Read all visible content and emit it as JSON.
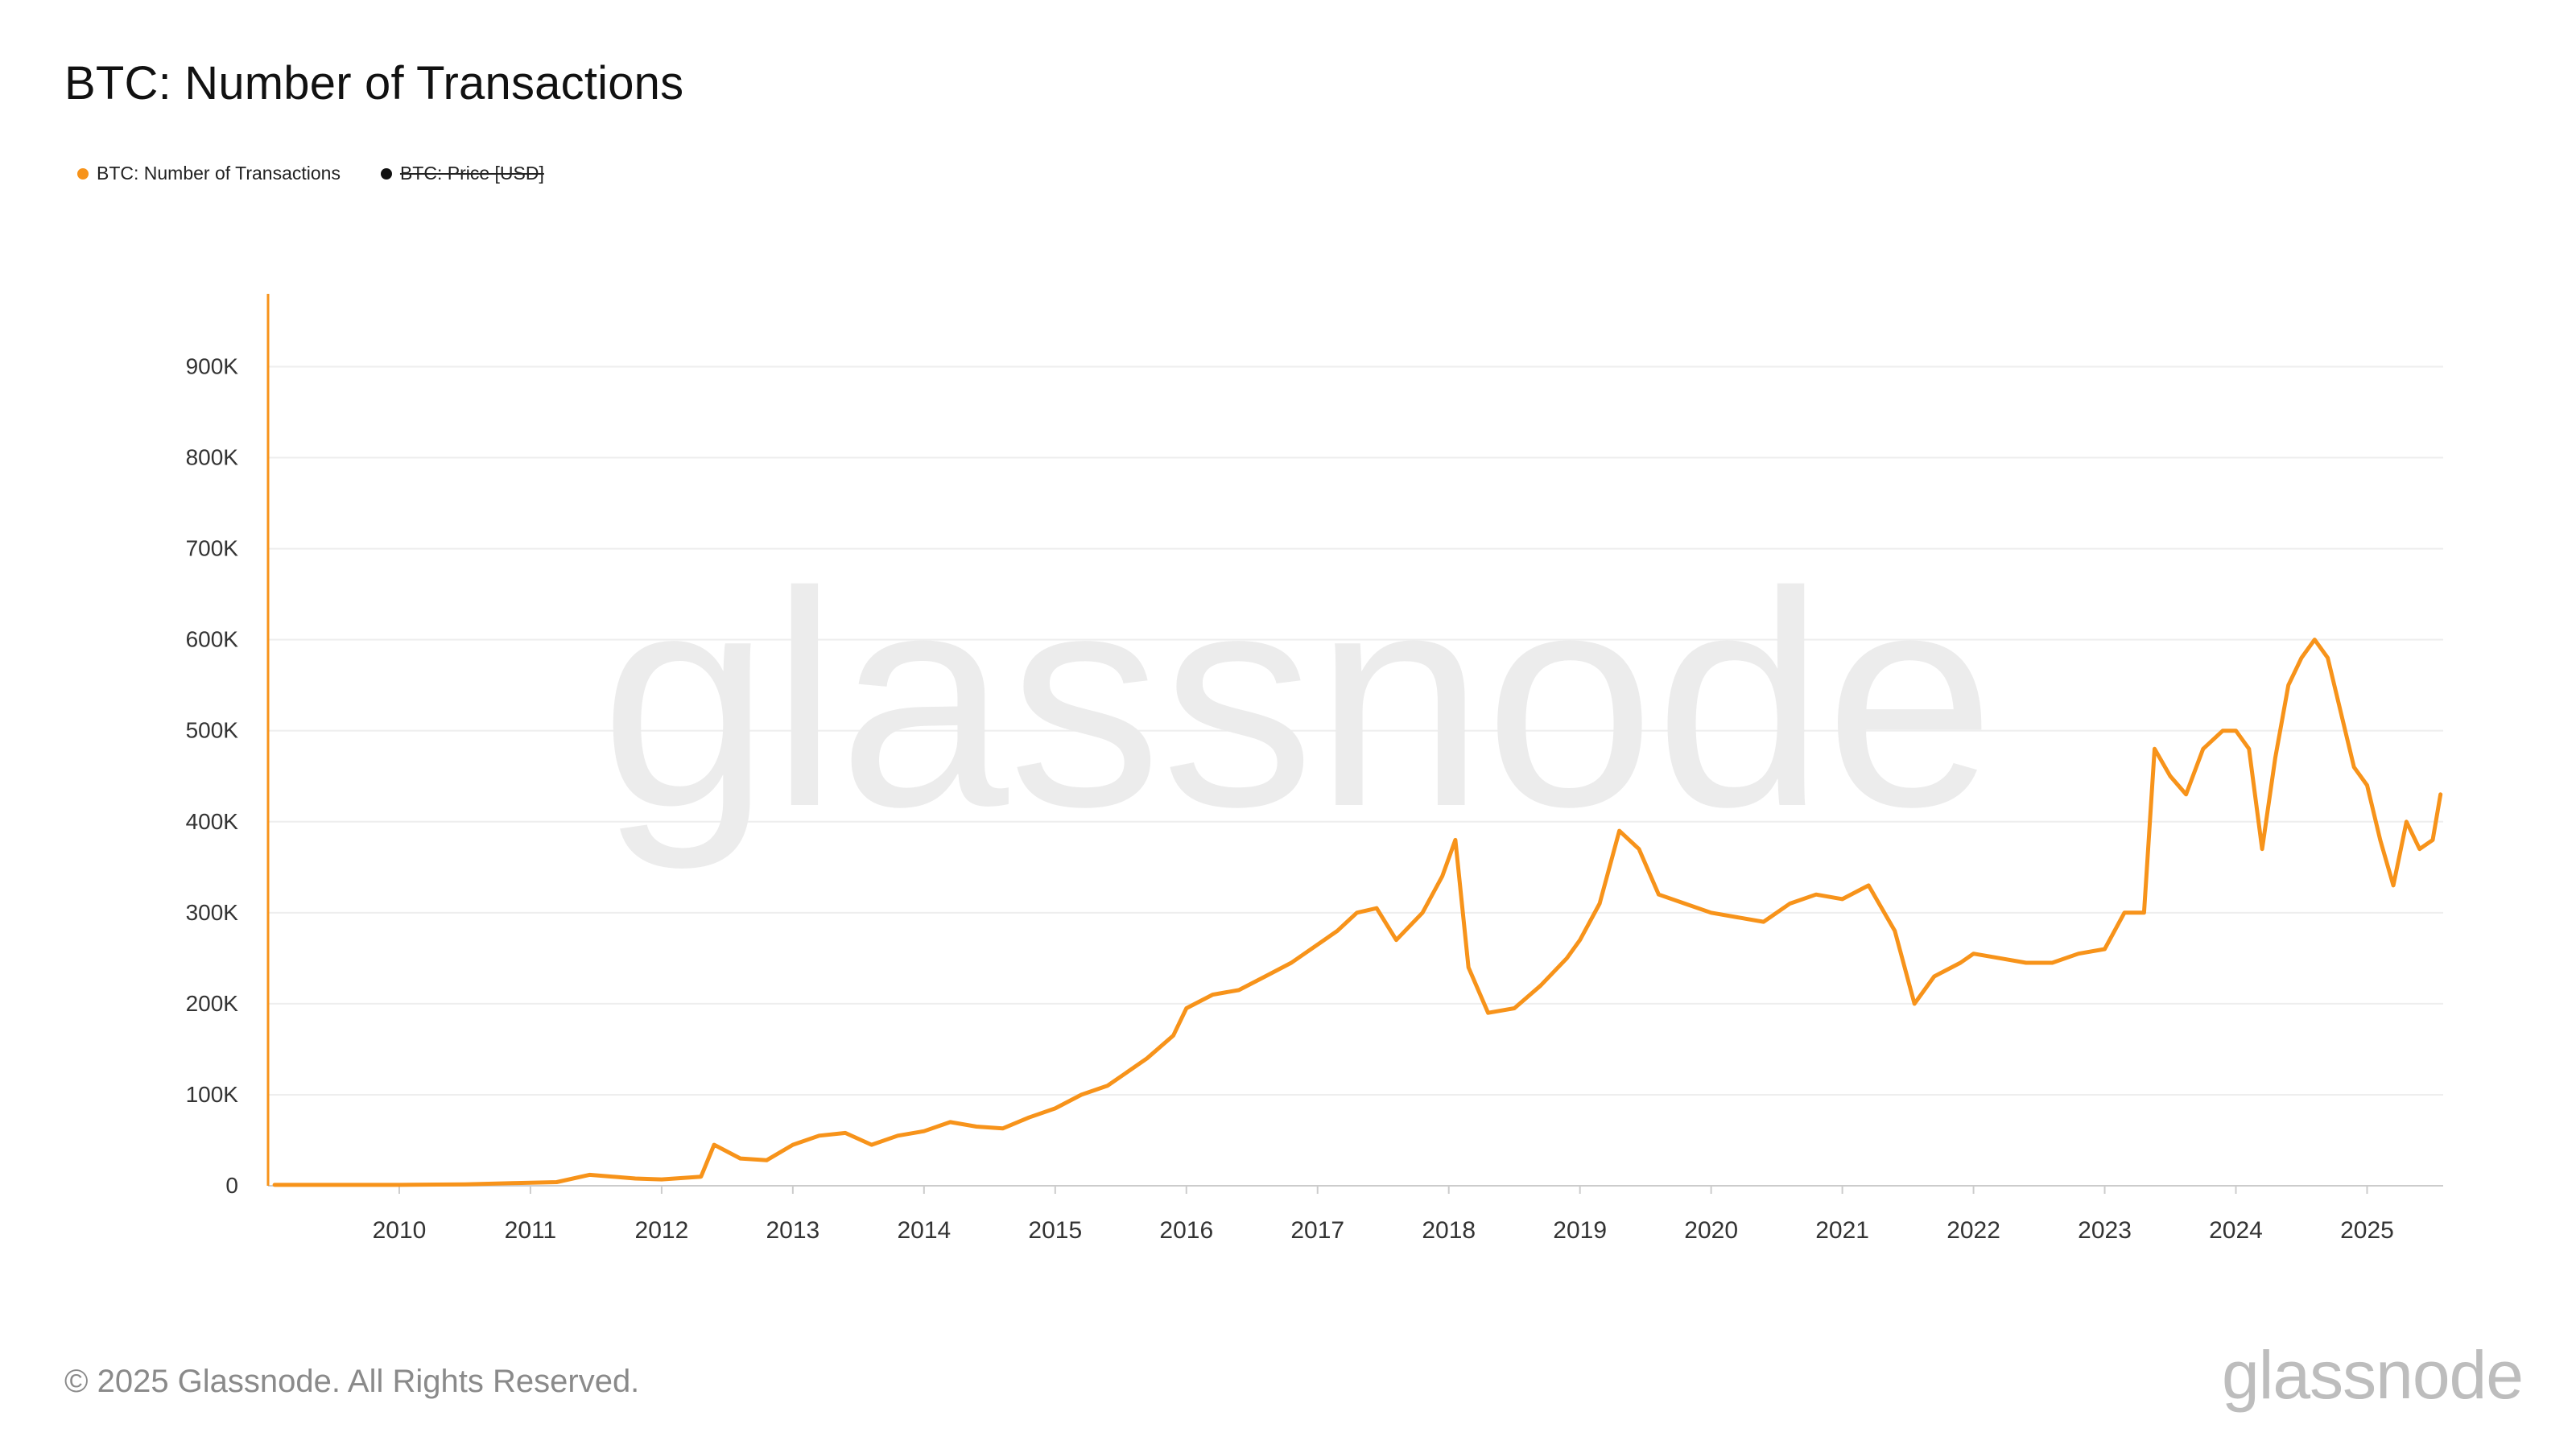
{
  "title": "BTC: Number of Transactions",
  "legend": [
    {
      "label": "BTC: Number of Transactions",
      "color": "#f7931a",
      "struck": false
    },
    {
      "label": "BTC: Price [USD]",
      "color": "#111111",
      "struck": true
    }
  ],
  "watermark": "glassnode",
  "footer": {
    "copyright": "© 2025 Glassnode. All Rights Reserved.",
    "logo": "glassnode"
  },
  "chart_data": {
    "type": "line",
    "title": "BTC: Number of Transactions",
    "xlabel": "",
    "ylabel": "",
    "x_domain": [
      2009.0,
      2025.58
    ],
    "ylim": [
      0,
      980000
    ],
    "y_ticks": [
      0,
      100000,
      200000,
      300000,
      400000,
      500000,
      600000,
      700000,
      800000,
      900000
    ],
    "y_tick_labels": [
      "0",
      "100K",
      "200K",
      "300K",
      "400K",
      "500K",
      "600K",
      "700K",
      "800K",
      "900K"
    ],
    "x_ticks": [
      2010,
      2011,
      2012,
      2013,
      2014,
      2015,
      2016,
      2017,
      2018,
      2019,
      2020,
      2021,
      2022,
      2023,
      2024,
      2025
    ],
    "x_tick_labels": [
      "2010",
      "2011",
      "2012",
      "2013",
      "2014",
      "2015",
      "2016",
      "2017",
      "2018",
      "2019",
      "2020",
      "2021",
      "2022",
      "2023",
      "2024",
      "2025"
    ],
    "grid": true,
    "legend_position": "top-left",
    "series": [
      {
        "name": "BTC: Number of Transactions",
        "color": "#f7931a",
        "x": [
          2009.05,
          2009.5,
          2010.0,
          2010.5,
          2010.9,
          2011.2,
          2011.45,
          2011.8,
          2012.0,
          2012.3,
          2012.4,
          2012.6,
          2012.8,
          2013.0,
          2013.2,
          2013.4,
          2013.6,
          2013.8,
          2014.0,
          2014.2,
          2014.4,
          2014.6,
          2014.8,
          2015.0,
          2015.2,
          2015.4,
          2015.55,
          2015.7,
          2015.9,
          2016.0,
          2016.2,
          2016.4,
          2016.6,
          2016.8,
          2017.0,
          2017.15,
          2017.3,
          2017.45,
          2017.6,
          2017.8,
          2017.95,
          2018.05,
          2018.15,
          2018.3,
          2018.5,
          2018.7,
          2018.9,
          2019.0,
          2019.15,
          2019.3,
          2019.45,
          2019.6,
          2019.8,
          2020.0,
          2020.2,
          2020.4,
          2020.6,
          2020.8,
          2021.0,
          2021.2,
          2021.4,
          2021.55,
          2021.7,
          2021.9,
          2022.0,
          2022.2,
          2022.4,
          2022.6,
          2022.8,
          2023.0,
          2023.15,
          2023.3,
          2023.38,
          2023.5,
          2023.62,
          2023.75,
          2023.9,
          2024.0,
          2024.1,
          2024.2,
          2024.3,
          2024.4,
          2024.5,
          2024.6,
          2024.7,
          2024.8,
          2024.9,
          2025.0,
          2025.1,
          2025.2,
          2025.3,
          2025.4,
          2025.5,
          2025.56
        ],
        "y": [
          1000,
          1000,
          1000,
          1500,
          3000,
          4000,
          12000,
          8000,
          7000,
          10000,
          45000,
          30000,
          28000,
          45000,
          55000,
          58000,
          45000,
          55000,
          60000,
          70000,
          65000,
          63000,
          75000,
          85000,
          100000,
          110000,
          125000,
          140000,
          165000,
          195000,
          210000,
          215000,
          230000,
          245000,
          265000,
          280000,
          300000,
          305000,
          270000,
          300000,
          340000,
          380000,
          240000,
          190000,
          195000,
          220000,
          250000,
          270000,
          310000,
          390000,
          370000,
          320000,
          310000,
          300000,
          295000,
          290000,
          310000,
          320000,
          315000,
          330000,
          280000,
          200000,
          230000,
          245000,
          255000,
          250000,
          245000,
          245000,
          255000,
          260000,
          300000,
          300000,
          480000,
          450000,
          430000,
          480000,
          500000,
          500000,
          480000,
          370000,
          470000,
          550000,
          580000,
          600000,
          580000,
          520000,
          460000,
          440000,
          380000,
          330000,
          400000,
          370000,
          380000,
          430000
        ]
      }
    ]
  }
}
